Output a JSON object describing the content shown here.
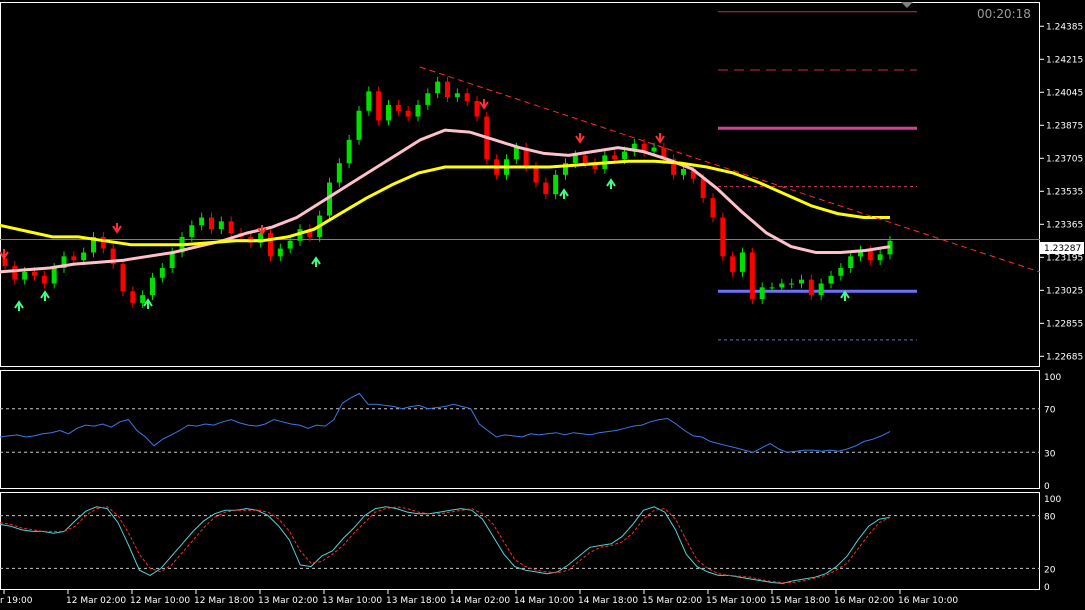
{
  "clock": "00:20:18",
  "current_price_label": "1.23287",
  "colors": {
    "background": "#000000",
    "frame": "#ffffff",
    "bull_candle": "#00e000",
    "bear_candle": "#ff0000",
    "ma_fast": "#ffc0cb",
    "ma_slow": "#ffff00",
    "trendline": "#ff2a2a",
    "rsi_line": "#3a78e8",
    "stoch_main": "#4fd4d4",
    "stoch_signal": "#ff2a2a",
    "level_line": "#c03060",
    "support_line": "#7070ff"
  },
  "chart_data": [
    {
      "type": "candlestick",
      "y_ticks": [
        "1.24385",
        "1.24215",
        "1.24045",
        "1.23875",
        "1.23705",
        "1.23535",
        "1.23365",
        "1.23195",
        "1.23025",
        "1.22855",
        "1.22685"
      ],
      "ylim": [
        1.2263,
        1.2451
      ],
      "x_ticks": [
        "r 19:00",
        "12 Mar 02:00",
        "12 Mar 10:00",
        "12 Mar 18:00",
        "13 Mar 02:00",
        "13 Mar 10:00",
        "13 Mar 18:00",
        "14 Mar 02:00",
        "14 Mar 10:00",
        "14 Mar 18:00",
        "15 Mar 02:00",
        "15 Mar 10:00",
        "15 Mar 18:00",
        "16 Mar 02:00",
        "16 Mar 10:00"
      ],
      "current_price": 1.23287,
      "series": [
        {
          "type": "close",
          "values": [
            1.2315,
            1.2308,
            1.2312,
            1.231,
            1.2306,
            1.2314,
            1.232,
            1.2318,
            1.2322,
            1.233,
            1.2324,
            1.2316,
            1.2302,
            1.2296,
            1.23,
            1.2309,
            1.2314,
            1.2322,
            1.233,
            1.2336,
            1.234,
            1.2334,
            1.2338,
            1.2332,
            1.233,
            1.2327,
            1.2332,
            1.232,
            1.2324,
            1.2328,
            1.2334,
            1.233,
            1.2341,
            1.2358,
            1.2368,
            1.238,
            1.2395,
            1.2405,
            1.239,
            1.2398,
            1.2395,
            1.2392,
            1.2398,
            1.2404,
            1.241,
            1.2402,
            1.2404,
            1.24,
            1.2392,
            1.237,
            1.2362,
            1.237,
            1.2376,
            1.2366,
            1.2358,
            1.2352,
            1.2362,
            1.2368,
            1.2372,
            1.2368,
            1.2365,
            1.2372,
            1.237,
            1.2374,
            1.2378,
            1.2374,
            1.2376,
            1.237,
            1.2362,
            1.2365,
            1.236,
            1.235,
            1.234,
            1.232,
            1.2312,
            1.2322,
            1.2298,
            1.2304,
            1.2304,
            1.2306,
            1.2306,
            1.2308,
            1.23,
            1.2306,
            1.231,
            1.2314,
            1.232,
            1.2323,
            1.2318,
            1.2321,
            1.2328
          ]
        },
        {
          "type": "ma_fast",
          "name": "",
          "values": [
            1.2312,
            1.2313,
            1.2314,
            1.2316,
            1.2317,
            1.2318,
            1.232,
            1.2322,
            1.2325,
            1.2328,
            1.2332,
            1.2335,
            1.234,
            1.2348,
            1.2356,
            1.2364,
            1.2372,
            1.238,
            1.2385,
            1.2384,
            1.238,
            1.2376,
            1.2373,
            1.2372,
            1.2374,
            1.2376,
            1.2374,
            1.237,
            1.2365,
            1.2355,
            1.2343,
            1.2332,
            1.2325,
            1.2322,
            1.2322,
            1.2323,
            1.2325
          ]
        },
        {
          "type": "ma_slow",
          "name": "",
          "values": [
            1.2336,
            1.2333,
            1.233,
            1.233,
            1.2328,
            1.2326,
            1.2326,
            1.2326,
            1.2327,
            1.2328,
            1.2328,
            1.233,
            1.2334,
            1.2342,
            1.235,
            1.2357,
            1.2363,
            1.2366,
            1.2366,
            1.2366,
            1.2366,
            1.2366,
            1.2367,
            1.2368,
            1.2369,
            1.2369,
            1.2368,
            1.2366,
            1.2363,
            1.2358,
            1.2352,
            1.2346,
            1.2342,
            1.234,
            1.234
          ]
        }
      ],
      "horizontal_levels": [
        1.2446,
        1.2416,
        1.2386,
        1.2356,
        1.2302,
        1.2277
      ]
    },
    {
      "type": "line",
      "y_ticks": [
        "100",
        "70",
        "30",
        "0"
      ],
      "ylim": [
        0,
        100
      ],
      "levels": [
        70,
        30
      ],
      "series": [
        {
          "values": [
            44,
            45,
            46,
            44,
            45,
            47,
            48,
            50,
            47,
            52,
            55,
            54,
            56,
            53,
            58,
            60,
            50,
            44,
            36,
            42,
            46,
            50,
            55,
            54,
            56,
            55,
            58,
            60,
            57,
            55,
            54,
            56,
            60,
            58,
            56,
            55,
            52,
            55,
            54,
            60,
            75,
            80,
            84,
            74,
            74,
            73,
            72,
            70,
            72,
            73,
            70,
            71,
            72,
            74,
            72,
            70,
            56,
            50,
            44,
            46,
            45,
            44,
            47,
            46,
            47,
            48,
            46,
            48,
            47,
            46,
            48,
            49,
            50,
            52,
            54,
            55,
            58,
            60,
            61,
            56,
            50,
            45,
            44,
            40,
            38,
            36,
            34,
            32,
            30,
            34,
            38,
            33,
            30,
            31,
            32,
            32,
            31,
            32,
            31,
            33,
            36,
            40,
            42,
            45,
            49
          ]
        }
      ]
    },
    {
      "type": "line",
      "y_ticks": [
        "100",
        "80",
        "20",
        "0"
      ],
      "ylim": [
        0,
        100
      ],
      "levels": [
        80,
        20
      ],
      "series": [
        {
          "name": "",
          "values": [
            70,
            68,
            64,
            62,
            62,
            60,
            62,
            74,
            85,
            90,
            88,
            72,
            46,
            18,
            12,
            20,
            34,
            48,
            62,
            74,
            82,
            86,
            86,
            88,
            86,
            80,
            68,
            52,
            24,
            22,
            34,
            40,
            54,
            66,
            80,
            88,
            90,
            88,
            84,
            82,
            82,
            84,
            86,
            88,
            86,
            76,
            56,
            36,
            22,
            18,
            16,
            14,
            16,
            24,
            34,
            44,
            46,
            48,
            56,
            70,
            86,
            90,
            84,
            64,
            36,
            22,
            16,
            12,
            12,
            10,
            8,
            6,
            4,
            3,
            6,
            8,
            10,
            14,
            22,
            34,
            52,
            68,
            76,
            78
          ]
        },
        {
          "name": "",
          "values": [
            72,
            70,
            66,
            64,
            62,
            62,
            62,
            68,
            80,
            88,
            90,
            80,
            60,
            36,
            20,
            16,
            24,
            38,
            52,
            66,
            78,
            84,
            86,
            86,
            86,
            84,
            76,
            62,
            40,
            26,
            28,
            36,
            46,
            60,
            72,
            84,
            88,
            90,
            88,
            84,
            82,
            82,
            84,
            86,
            88,
            82,
            70,
            50,
            30,
            22,
            18,
            16,
            15,
            18,
            28,
            38,
            44,
            46,
            50,
            60,
            76,
            86,
            88,
            76,
            52,
            30,
            20,
            14,
            12,
            11,
            10,
            7,
            5,
            4,
            4,
            6,
            9,
            12,
            18,
            26,
            42,
            58,
            72,
            78
          ]
        }
      ]
    }
  ]
}
